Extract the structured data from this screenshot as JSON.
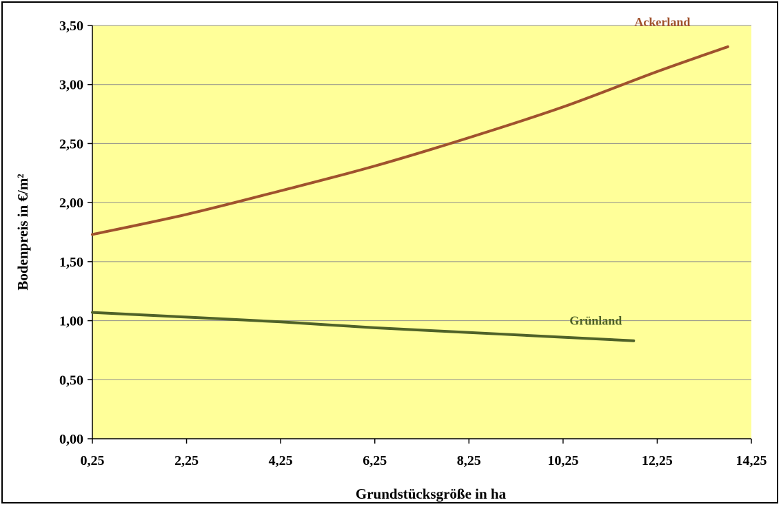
{
  "chart_data": {
    "type": "line",
    "title": "",
    "xlabel": "Grundstücksgröße in ha",
    "ylabel": "Bodenpreis in €/m²",
    "xlim": [
      0.25,
      14.25
    ],
    "ylim": [
      0,
      3.5
    ],
    "x_ticks": [
      0.25,
      2.25,
      4.25,
      6.25,
      8.25,
      10.25,
      12.25,
      14.25
    ],
    "x_tick_labels": [
      "0,25",
      "2,25",
      "4,25",
      "6,25",
      "8,25",
      "10,25",
      "12,25",
      "14,25"
    ],
    "y_ticks": [
      0,
      0.5,
      1,
      1.5,
      2,
      2.5,
      3,
      3.5
    ],
    "y_tick_labels": [
      "0,00",
      "0,50",
      "1,00",
      "1,50",
      "2,00",
      "2,50",
      "3,00",
      "3,50"
    ],
    "grid": true,
    "plot_background": "#ffff99",
    "series": [
      {
        "name": "Ackerland",
        "color": "#a0522d",
        "x": [
          0.25,
          2.25,
          4.25,
          6.25,
          8.25,
          10.25,
          12.25,
          13.75
        ],
        "y": [
          1.73,
          1.9,
          2.1,
          2.31,
          2.55,
          2.81,
          3.11,
          3.32
        ]
      },
      {
        "name": "Grünland",
        "color": "#4f6228",
        "x": [
          0.25,
          2.25,
          4.25,
          6.25,
          8.25,
          10.25,
          11.75
        ],
        "y": [
          1.07,
          1.03,
          0.99,
          0.94,
          0.9,
          0.86,
          0.83
        ]
      }
    ]
  }
}
